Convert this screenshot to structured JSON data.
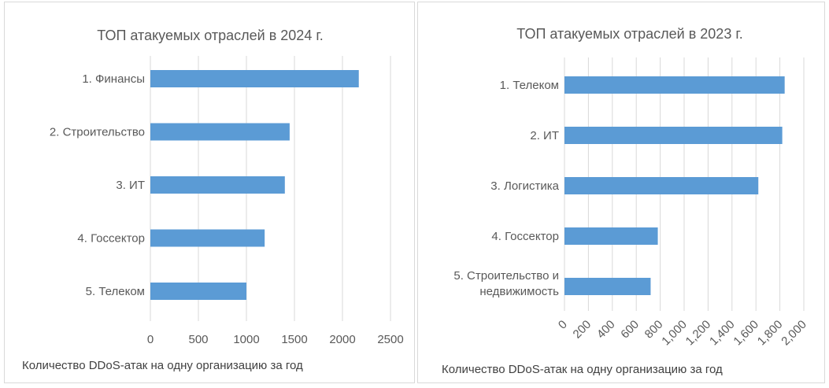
{
  "chart_data": [
    {
      "type": "bar",
      "orientation": "horizontal",
      "title": "ТОП атакуемых отраслей в 2024 г.",
      "xlabel": "Количество DDoS-атак на одну организацию за год",
      "categories": [
        "1. Финансы",
        "2. Строительство",
        "3. ИТ",
        "4. Госсектор",
        "5. Телеком"
      ],
      "values": [
        2170,
        1450,
        1400,
        1190,
        1000
      ],
      "xlim": [
        0,
        2500
      ],
      "ticks": [
        "0",
        "500",
        "1000",
        "1500",
        "2000",
        "2500"
      ],
      "grid": true,
      "color": "#5b9bd5"
    },
    {
      "type": "bar",
      "orientation": "horizontal",
      "title": "ТОП атакуемых отраслей в 2023 г.",
      "xlabel": "Количество DDoS-атак на одну организацию за год",
      "categories": [
        "1. Телеком",
        "2. ИТ",
        "3. Логистика",
        "4. Госсектор",
        "5. Строительство и недвижимость"
      ],
      "values": [
        1840,
        1820,
        1620,
        780,
        720
      ],
      "xlim": [
        0,
        2000
      ],
      "ticks": [
        "0",
        "200",
        "400",
        "600",
        "800",
        "1,000",
        "1,200",
        "1,400",
        "1,600",
        "1,800",
        "2,000"
      ],
      "grid": true,
      "color": "#5b9bd5"
    }
  ]
}
